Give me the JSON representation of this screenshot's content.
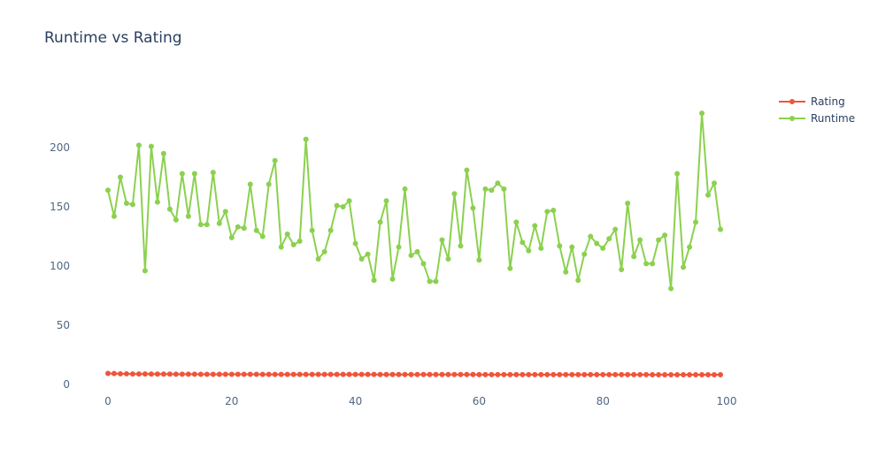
{
  "chart_data": {
    "type": "line",
    "title": "Runtime vs Rating",
    "xlabel": "",
    "ylabel": "",
    "xlim": [
      -2,
      101
    ],
    "ylim": [
      0,
      250
    ],
    "x_ticks": [
      0,
      20,
      40,
      60,
      80,
      100
    ],
    "y_ticks": [
      0,
      50,
      100,
      150,
      200
    ],
    "grid": false,
    "legend_position": "top-right",
    "series": [
      {
        "name": "Rating",
        "color": "#EF553B",
        "values": [
          9.3,
          9.2,
          9.0,
          9.0,
          8.9,
          8.9,
          8.9,
          8.8,
          8.8,
          8.8,
          8.8,
          8.7,
          8.7,
          8.7,
          8.7,
          8.6,
          8.6,
          8.6,
          8.6,
          8.6,
          8.6,
          8.6,
          8.6,
          8.6,
          8.6,
          8.5,
          8.5,
          8.5,
          8.5,
          8.5,
          8.5,
          8.5,
          8.5,
          8.5,
          8.5,
          8.5,
          8.5,
          8.5,
          8.5,
          8.5,
          8.5,
          8.5,
          8.5,
          8.5,
          8.4,
          8.4,
          8.4,
          8.4,
          8.4,
          8.4,
          8.4,
          8.4,
          8.4,
          8.4,
          8.4,
          8.4,
          8.4,
          8.4,
          8.4,
          8.4,
          8.3,
          8.3,
          8.3,
          8.3,
          8.3,
          8.3,
          8.3,
          8.3,
          8.3,
          8.3,
          8.3,
          8.3,
          8.3,
          8.3,
          8.3,
          8.3,
          8.3,
          8.3,
          8.3,
          8.3,
          8.3,
          8.3,
          8.3,
          8.3,
          8.3,
          8.3,
          8.3,
          8.3,
          8.2,
          8.2,
          8.2,
          8.2,
          8.2,
          8.2,
          8.2,
          8.2,
          8.2,
          8.2,
          8.2,
          8.2
        ]
      },
      {
        "name": "Runtime",
        "color": "#8BD14F",
        "values": [
          164,
          142,
          175,
          153,
          152,
          202,
          96,
          201,
          154,
          195,
          148,
          139,
          178,
          142,
          178,
          135,
          135,
          179,
          136,
          146,
          124,
          133,
          132,
          169,
          130,
          125,
          169,
          189,
          116,
          127,
          118,
          121,
          207,
          130,
          106,
          112,
          130,
          151,
          150,
          155,
          119,
          106,
          110,
          88,
          137,
          155,
          89,
          116,
          165,
          109,
          112,
          102,
          87,
          87,
          122,
          106,
          161,
          117,
          181,
          149,
          105,
          165,
          164,
          170,
          165,
          98,
          137,
          120,
          113,
          134,
          115,
          146,
          147,
          117,
          95,
          116,
          88,
          110,
          125,
          119,
          115,
          123,
          131,
          97,
          153,
          108,
          122,
          102,
          102,
          122,
          126,
          81,
          178,
          99,
          116,
          137,
          229,
          160,
          170,
          131
        ]
      }
    ]
  }
}
